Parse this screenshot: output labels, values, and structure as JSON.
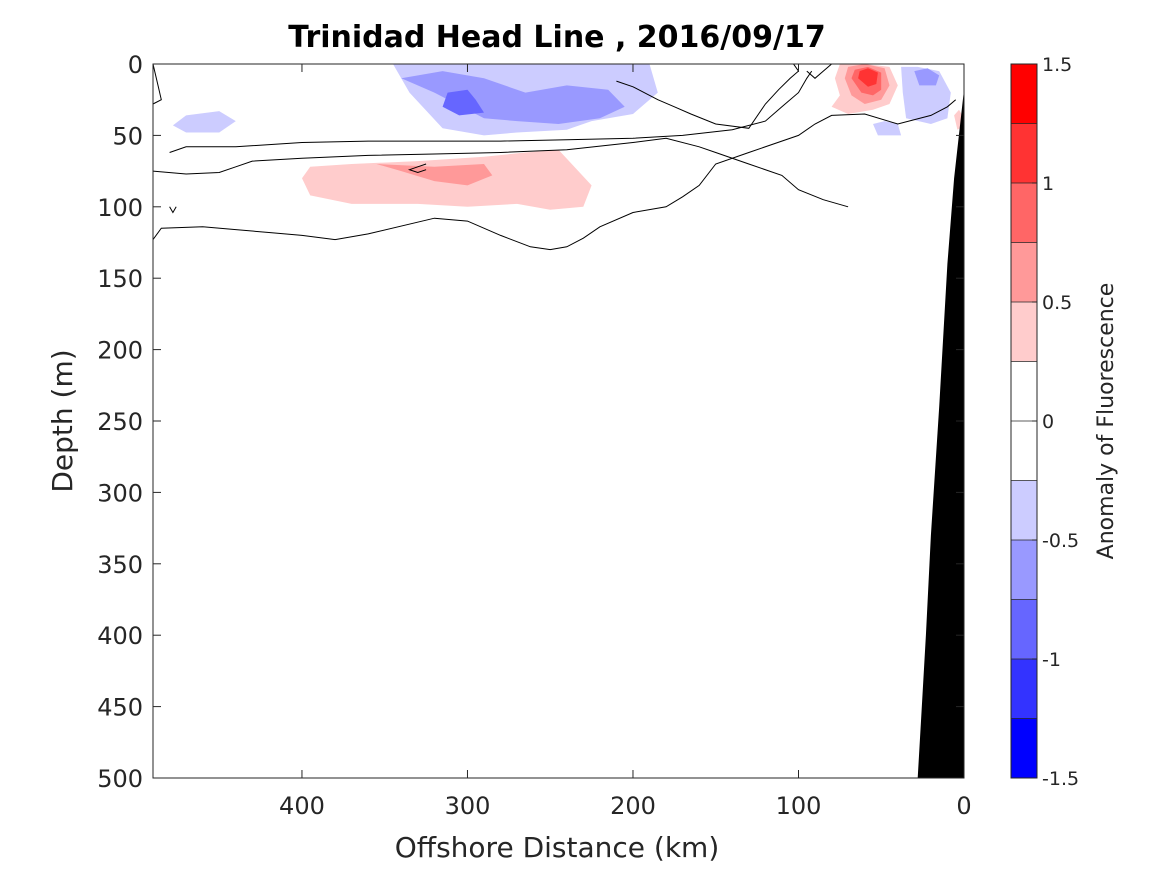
{
  "chart_data": {
    "type": "contour",
    "title": "Trinidad Head Line , 2016/09/17",
    "xlabel": "Offshore Distance (km)",
    "ylabel": "Depth (m)",
    "xlim": [
      0,
      490
    ],
    "x_reversed": true,
    "ylim": [
      0,
      500
    ],
    "y_reversed": true,
    "xticks": [
      400,
      300,
      200,
      100,
      0
    ],
    "yticks": [
      0,
      50,
      100,
      150,
      200,
      250,
      300,
      350,
      400,
      450,
      500
    ],
    "colorbar": {
      "label": "Anomaly of Fluorescence",
      "range": [
        -1.5,
        1.5
      ],
      "ticks": [
        -1.5,
        -1,
        -0.5,
        0,
        0.5,
        1,
        1.5
      ],
      "levels": [
        1.5,
        1.25,
        1.0,
        0.75,
        0.5,
        0.25,
        0,
        -0.25,
        -0.5,
        -0.75,
        -1.0,
        -1.25,
        -1.5
      ],
      "colors": [
        "#ff0000",
        "#ff3333",
        "#ff6666",
        "#ff9999",
        "#ffcccc",
        "#ffffff",
        "#ffffff",
        "#ccccff",
        "#9999ff",
        "#6666ff",
        "#3333ff",
        "#0000ff"
      ]
    },
    "filled_regions": [
      {
        "level": -0.25,
        "color": "#ccccff",
        "points": [
          [
            345,
            0
          ],
          [
            335,
            20
          ],
          [
            315,
            45
          ],
          [
            290,
            50
          ],
          [
            270,
            48
          ],
          [
            240,
            46
          ],
          [
            225,
            40
          ],
          [
            200,
            35
          ],
          [
            185,
            20
          ],
          [
            190,
            0
          ],
          [
            240,
            0
          ],
          [
            300,
            0
          ]
        ]
      },
      {
        "level": -0.25,
        "color": "#ccccff",
        "points": [
          [
            470,
            36
          ],
          [
            450,
            33
          ],
          [
            440,
            40
          ],
          [
            450,
            48
          ],
          [
            470,
            48
          ],
          [
            478,
            43
          ]
        ]
      },
      {
        "level": -0.5,
        "color": "#9999ff",
        "points": [
          [
            340,
            10
          ],
          [
            320,
            20
          ],
          [
            290,
            38
          ],
          [
            270,
            40
          ],
          [
            245,
            42
          ],
          [
            220,
            38
          ],
          [
            205,
            30
          ],
          [
            215,
            18
          ],
          [
            240,
            15
          ],
          [
            265,
            20
          ],
          [
            290,
            10
          ],
          [
            315,
            5
          ]
        ]
      },
      {
        "level": -0.75,
        "color": "#6666ff",
        "points": [
          [
            300,
            18
          ],
          [
            295,
            25
          ],
          [
            290,
            34
          ],
          [
            305,
            36
          ],
          [
            315,
            30
          ],
          [
            312,
            20
          ]
        ]
      },
      {
        "level": 0.25,
        "color": "#ffcccc",
        "points": [
          [
            400,
            80
          ],
          [
            395,
            92
          ],
          [
            370,
            98
          ],
          [
            330,
            98
          ],
          [
            300,
            100
          ],
          [
            270,
            98
          ],
          [
            250,
            102
          ],
          [
            230,
            100
          ],
          [
            225,
            85
          ],
          [
            245,
            60
          ],
          [
            265,
            62
          ],
          [
            290,
            65
          ],
          [
            330,
            68
          ],
          [
            370,
            70
          ],
          [
            395,
            72
          ]
        ]
      },
      {
        "level": 0.5,
        "color": "#ff9999",
        "points": [
          [
            355,
            70
          ],
          [
            340,
            75
          ],
          [
            320,
            82
          ],
          [
            300,
            85
          ],
          [
            285,
            78
          ],
          [
            290,
            70
          ],
          [
            320,
            72
          ]
        ]
      },
      {
        "level": 0.25,
        "color": "#ffcccc",
        "points": [
          [
            78,
            10
          ],
          [
            75,
            22
          ],
          [
            80,
            30
          ],
          [
            70,
            35
          ],
          [
            55,
            32
          ],
          [
            45,
            28
          ],
          [
            40,
            15
          ],
          [
            45,
            2
          ],
          [
            60,
            0
          ],
          [
            75,
            0
          ]
        ]
      },
      {
        "level": 0.5,
        "color": "#ff9999",
        "points": [
          [
            72,
            10
          ],
          [
            68,
            22
          ],
          [
            60,
            28
          ],
          [
            50,
            25
          ],
          [
            45,
            15
          ],
          [
            48,
            3
          ],
          [
            60,
            0
          ],
          [
            70,
            2
          ]
        ]
      },
      {
        "level": 0.75,
        "color": "#ff6666",
        "points": [
          [
            68,
            10
          ],
          [
            62,
            20
          ],
          [
            55,
            22
          ],
          [
            50,
            18
          ],
          [
            50,
            6
          ],
          [
            58,
            2
          ],
          [
            66,
            4
          ]
        ]
      },
      {
        "level": 1.0,
        "color": "#ff3333",
        "points": [
          [
            64,
            10
          ],
          [
            58,
            16
          ],
          [
            53,
            14
          ],
          [
            52,
            6
          ],
          [
            58,
            3
          ],
          [
            63,
            5
          ]
        ]
      },
      {
        "level": -0.25,
        "color": "#ccccff",
        "points": [
          [
            38,
            2
          ],
          [
            37,
            20
          ],
          [
            35,
            38
          ],
          [
            20,
            42
          ],
          [
            10,
            38
          ],
          [
            8,
            20
          ],
          [
            15,
            5
          ],
          [
            28,
            2
          ]
        ]
      },
      {
        "level": -0.5,
        "color": "#9999ff",
        "points": [
          [
            30,
            5
          ],
          [
            27,
            15
          ],
          [
            17,
            15
          ],
          [
            15,
            8
          ],
          [
            22,
            3
          ]
        ]
      },
      {
        "level": -0.25,
        "color": "#ccccff",
        "points": [
          [
            55,
            42
          ],
          [
            52,
            50
          ],
          [
            38,
            50
          ],
          [
            40,
            42
          ],
          [
            48,
            40
          ]
        ]
      },
      {
        "level": 0.25,
        "color": "#ffcccc",
        "points": [
          [
            6,
            36
          ],
          [
            4,
            46
          ],
          [
            1,
            44
          ],
          [
            1,
            36
          ],
          [
            3,
            32
          ]
        ]
      }
    ],
    "contour_lines": [
      {
        "level": 0,
        "points": [
          [
            490,
            0
          ],
          [
            487,
            15
          ],
          [
            485,
            25
          ],
          [
            490,
            28
          ]
        ]
      },
      {
        "level": 0,
        "points": [
          [
            480,
            62
          ],
          [
            470,
            58
          ],
          [
            440,
            58
          ],
          [
            400,
            55
          ],
          [
            360,
            54
          ],
          [
            320,
            54
          ],
          [
            280,
            54
          ],
          [
            240,
            53
          ],
          [
            200,
            52
          ],
          [
            170,
            50
          ],
          [
            140,
            46
          ],
          [
            120,
            40
          ],
          [
            110,
            30
          ],
          [
            100,
            20
          ],
          [
            95,
            10
          ],
          [
            92,
            5
          ]
        ]
      },
      {
        "level": 0,
        "points": [
          [
            490,
            75
          ],
          [
            470,
            77
          ],
          [
            450,
            76
          ],
          [
            440,
            72
          ],
          [
            430,
            68
          ],
          [
            400,
            66
          ],
          [
            360,
            64
          ],
          [
            320,
            63
          ],
          [
            280,
            62
          ],
          [
            240,
            60
          ],
          [
            200,
            55
          ],
          [
            180,
            52
          ],
          [
            160,
            58
          ],
          [
            150,
            62
          ],
          [
            130,
            70
          ],
          [
            110,
            78
          ],
          [
            100,
            88
          ],
          [
            85,
            95
          ],
          [
            70,
            100
          ]
        ]
      },
      {
        "level": 0,
        "points": [
          [
            490,
            123
          ],
          [
            485,
            115
          ],
          [
            460,
            114
          ],
          [
            440,
            116
          ],
          [
            420,
            118
          ],
          [
            400,
            120
          ],
          [
            380,
            123
          ],
          [
            360,
            119
          ],
          [
            320,
            108
          ],
          [
            300,
            110
          ],
          [
            280,
            120
          ],
          [
            262,
            128
          ],
          [
            250,
            130
          ],
          [
            240,
            128
          ],
          [
            230,
            122
          ],
          [
            220,
            114
          ],
          [
            200,
            104
          ],
          [
            180,
            100
          ],
          [
            170,
            93
          ],
          [
            160,
            85
          ],
          [
            150,
            70
          ],
          [
            130,
            62
          ],
          [
            100,
            50
          ],
          [
            90,
            42
          ],
          [
            80,
            36
          ],
          [
            60,
            35
          ],
          [
            40,
            42
          ],
          [
            20,
            36
          ],
          [
            10,
            30
          ],
          [
            5,
            25
          ]
        ]
      },
      {
        "level": 0,
        "points": [
          [
            325,
            70
          ],
          [
            330,
            72
          ],
          [
            335,
            74
          ],
          [
            330,
            76
          ],
          [
            325,
            74
          ]
        ]
      },
      {
        "level": 0,
        "points": [
          [
            210,
            12
          ],
          [
            200,
            16
          ],
          [
            185,
            25
          ],
          [
            175,
            30
          ],
          [
            165,
            35
          ],
          [
            150,
            42
          ],
          [
            130,
            45
          ],
          [
            120,
            28
          ],
          [
            112,
            18
          ],
          [
            105,
            10
          ],
          [
            100,
            5
          ],
          [
            103,
            0
          ]
        ]
      },
      {
        "level": 0,
        "points": [
          [
            95,
            5
          ],
          [
            90,
            10
          ],
          [
            85,
            5
          ],
          [
            80,
            0
          ]
        ]
      },
      {
        "level": 0,
        "points": [
          [
            480,
            100
          ],
          [
            478,
            104
          ],
          [
            476,
            100
          ]
        ]
      }
    ],
    "bathymetry": {
      "color": "#000000",
      "points": [
        [
          0,
          18
        ],
        [
          6,
          80
        ],
        [
          10,
          140
        ],
        [
          15,
          240
        ],
        [
          20,
          330
        ],
        [
          23,
          400
        ],
        [
          26,
          460
        ],
        [
          28,
          500
        ],
        [
          0,
          500
        ]
      ]
    }
  }
}
